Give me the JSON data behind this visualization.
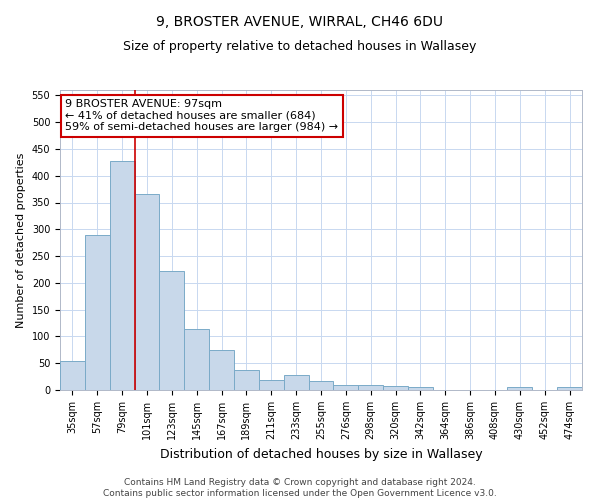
{
  "title": "9, BROSTER AVENUE, WIRRAL, CH46 6DU",
  "subtitle": "Size of property relative to detached houses in Wallasey",
  "xlabel": "Distribution of detached houses by size in Wallasey",
  "ylabel": "Number of detached properties",
  "footer_line1": "Contains HM Land Registry data © Crown copyright and database right 2024.",
  "footer_line2": "Contains public sector information licensed under the Open Government Licence v3.0.",
  "bin_labels": [
    "35sqm",
    "57sqm",
    "79sqm",
    "101sqm",
    "123sqm",
    "145sqm",
    "167sqm",
    "189sqm",
    "211sqm",
    "233sqm",
    "255sqm",
    "276sqm",
    "298sqm",
    "320sqm",
    "342sqm",
    "364sqm",
    "386sqm",
    "408sqm",
    "430sqm",
    "452sqm",
    "474sqm"
  ],
  "bar_values": [
    55,
    290,
    428,
    365,
    222,
    114,
    75,
    38,
    18,
    28,
    16,
    10,
    9,
    8,
    5,
    0,
    0,
    0,
    5,
    0,
    5
  ],
  "bar_color": "#c8d8ea",
  "bar_edge_color": "#7aaac8",
  "marker_bin_index": 2,
  "marker_color": "#cc0000",
  "annotation_text": "9 BROSTER AVENUE: 97sqm\n← 41% of detached houses are smaller (684)\n59% of semi-detached houses are larger (984) →",
  "annotation_box_color": "#ffffff",
  "annotation_box_edge": "#cc0000",
  "ylim": [
    0,
    560
  ],
  "yticks": [
    0,
    50,
    100,
    150,
    200,
    250,
    300,
    350,
    400,
    450,
    500,
    550
  ],
  "bg_color": "#ffffff",
  "grid_color": "#c8d8f0",
  "title_fontsize": 10,
  "subtitle_fontsize": 9,
  "xlabel_fontsize": 9,
  "ylabel_fontsize": 8,
  "tick_fontsize": 7,
  "annotation_fontsize": 8,
  "footer_fontsize": 6.5
}
